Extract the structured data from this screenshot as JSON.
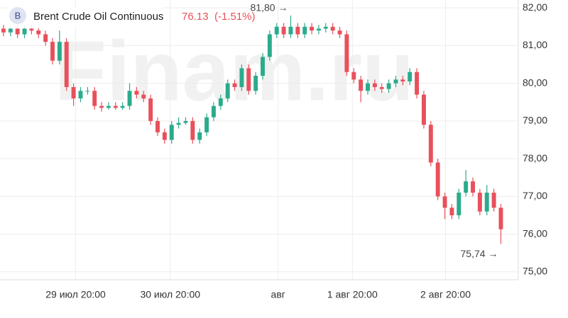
{
  "chart_data": {
    "type": "candlestick",
    "badge": "B",
    "title": "Brent Crude Oil Continuous",
    "last_price": 76.13,
    "change": "(-1.51%)",
    "watermark": "Finam.ru",
    "up_color": "#2bab8b",
    "down_color": "#e8505b",
    "open": [
      81.45,
      81.35,
      81.45,
      81.3,
      81.45,
      81.4,
      81.3,
      81.1,
      80.6,
      81.1,
      79.9,
      79.6,
      79.8,
      79.8,
      79.4,
      79.35,
      79.4,
      79.35,
      79.4,
      79.8,
      79.7,
      79.6,
      79.0,
      78.7,
      78.5,
      78.9,
      78.95,
      79.0,
      78.5,
      78.7,
      79.1,
      79.4,
      79.6,
      80.0,
      79.9,
      80.4,
      79.8,
      80.2,
      80.7,
      81.3,
      81.5,
      81.3,
      81.5,
      81.3,
      81.5,
      81.4,
      81.45,
      81.5,
      81.4,
      81.3,
      80.3,
      80.1,
      79.8,
      80.0,
      79.9,
      79.85,
      80.0,
      80.1,
      80.05,
      80.3,
      79.7,
      78.9,
      77.9,
      77.0,
      76.7,
      76.5,
      77.1,
      77.4,
      77.1,
      76.6,
      77.1,
      76.7
    ],
    "high": [
      81.55,
      81.55,
      81.55,
      81.55,
      81.55,
      81.5,
      81.4,
      81.2,
      81.4,
      81.2,
      80.0,
      79.9,
      79.9,
      79.9,
      79.5,
      79.5,
      79.5,
      79.5,
      80.0,
      79.9,
      79.8,
      79.7,
      79.1,
      78.8,
      79.0,
      79.1,
      79.1,
      79.1,
      78.8,
      79.2,
      79.5,
      79.7,
      80.1,
      80.1,
      80.5,
      80.5,
      80.3,
      80.8,
      81.4,
      81.6,
      81.6,
      81.8,
      81.6,
      81.6,
      81.6,
      81.55,
      81.6,
      81.6,
      81.5,
      81.4,
      80.4,
      80.2,
      80.1,
      80.1,
      80.0,
      80.1,
      80.2,
      80.2,
      80.4,
      80.4,
      79.8,
      79.0,
      78.0,
      77.1,
      76.8,
      77.2,
      77.7,
      77.5,
      77.2,
      77.3,
      77.2,
      76.8
    ],
    "low": [
      81.25,
      81.25,
      81.2,
      81.2,
      81.3,
      81.2,
      81.0,
      80.5,
      80.5,
      79.8,
      79.4,
      79.5,
      79.7,
      79.3,
      79.25,
      79.3,
      79.3,
      79.3,
      79.3,
      79.6,
      79.5,
      78.9,
      78.6,
      78.4,
      78.4,
      78.8,
      78.9,
      78.4,
      78.4,
      78.6,
      79.0,
      79.3,
      79.5,
      79.8,
      79.8,
      79.7,
      79.7,
      80.1,
      80.6,
      81.2,
      81.2,
      81.2,
      81.2,
      81.2,
      81.3,
      81.3,
      81.35,
      81.3,
      81.2,
      80.2,
      80.0,
      79.5,
      79.7,
      79.8,
      79.75,
      79.75,
      79.9,
      79.95,
      79.95,
      79.6,
      78.8,
      77.8,
      76.9,
      76.4,
      76.4,
      76.4,
      77.0,
      77.0,
      76.5,
      76.5,
      76.6,
      75.74
    ],
    "close": [
      81.35,
      81.45,
      81.3,
      81.45,
      81.4,
      81.3,
      81.1,
      80.6,
      81.1,
      79.9,
      79.6,
      79.8,
      79.8,
      79.4,
      79.35,
      79.4,
      79.35,
      79.4,
      79.8,
      79.7,
      79.6,
      79.0,
      78.7,
      78.5,
      78.9,
      78.95,
      79.0,
      78.5,
      78.7,
      79.1,
      79.4,
      79.6,
      80.0,
      79.9,
      80.4,
      79.8,
      80.2,
      80.7,
      81.3,
      81.5,
      81.3,
      81.5,
      81.3,
      81.5,
      81.4,
      81.45,
      81.5,
      81.4,
      81.3,
      80.3,
      80.1,
      79.8,
      80.0,
      79.9,
      79.85,
      80.0,
      80.1,
      80.05,
      80.3,
      79.7,
      78.9,
      77.9,
      77.0,
      76.7,
      76.5,
      77.1,
      77.4,
      77.1,
      76.6,
      77.1,
      76.7,
      76.13
    ],
    "xlim": [
      -0.5,
      74.5
    ],
    "xticks": [
      {
        "value": 10.3,
        "label": "29 июл 20:00"
      },
      {
        "value": 23.8,
        "label": "30 июл 20:00"
      },
      {
        "value": 39.2,
        "label": "авг"
      },
      {
        "value": 49.8,
        "label": "1 авг 20:00"
      },
      {
        "value": 63.1,
        "label": "2 авг 20:00"
      }
    ],
    "ylim": [
      74.79,
      82.21
    ],
    "yticks": [
      {
        "value": 75,
        "label": "75,00"
      },
      {
        "value": 76,
        "label": "76,00"
      },
      {
        "value": 77,
        "label": "77,00"
      },
      {
        "value": 78,
        "label": "78,00"
      },
      {
        "value": 79,
        "label": "79,00"
      },
      {
        "value": 80,
        "label": "80,00"
      },
      {
        "value": 81,
        "label": "81,00"
      },
      {
        "value": 82,
        "label": "82,00"
      }
    ],
    "annotations": [
      {
        "kind": "high",
        "value": 81.8,
        "label": "81,80 →"
      },
      {
        "kind": "low",
        "value": 75.74,
        "label": "75,74 →"
      }
    ],
    "grid": true
  }
}
